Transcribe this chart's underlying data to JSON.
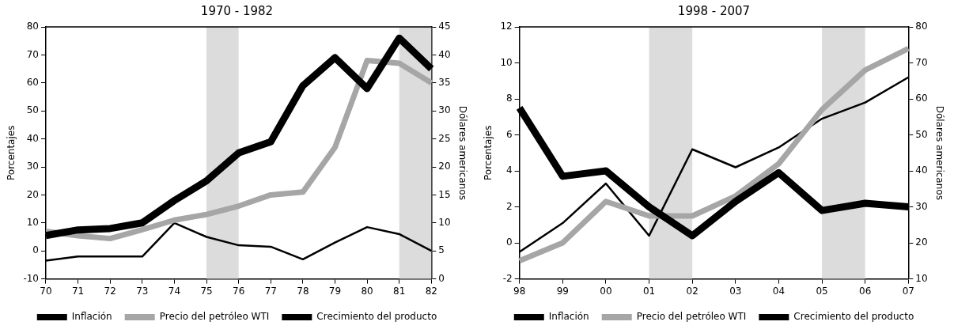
{
  "chart_data": [
    {
      "type": "line",
      "title": "1970 - 1982",
      "ylabel": "Porcentajes",
      "y2label": "Dólares americanos",
      "categories": [
        "70",
        "71",
        "72",
        "73",
        "74",
        "75",
        "76",
        "77",
        "78",
        "79",
        "80",
        "81",
        "82"
      ],
      "series": [
        {
          "name": "Inflación",
          "color": "#000000",
          "values": [
            5.5,
            7.5,
            8,
            10,
            18,
            25,
            35,
            39,
            59,
            69,
            58,
            76,
            65
          ]
        },
        {
          "name": "Precio del petróleo WTI",
          "color": "#a6a6a6",
          "axis": "y2",
          "values": [
            8.5,
            7.7,
            7.2,
            8.8,
            10.5,
            11.5,
            13,
            15,
            15.5,
            23.5,
            39,
            38.5,
            35
          ]
        },
        {
          "name": "Crecimiento del producto",
          "color": "#000000",
          "values": [
            -3.5,
            -2,
            -2,
            -2,
            10,
            5,
            2,
            1.5,
            -3,
            3,
            8.5,
            6,
            0
          ]
        }
      ],
      "ylim": [
        -10,
        80
      ],
      "yticks": [
        -10,
        0,
        10,
        20,
        30,
        40,
        50,
        60,
        70,
        80
      ],
      "y2lim": [
        0,
        45
      ],
      "y2ticks": [
        0,
        5,
        10,
        15,
        20,
        25,
        30,
        35,
        40,
        45
      ],
      "bands": [
        {
          "axis": "x",
          "from": "75",
          "to": "76",
          "color": "#dcdcdc"
        },
        {
          "axis": "x",
          "from": "81",
          "to": "82",
          "color": "#dcdcdc"
        }
      ],
      "grid": false,
      "legend": "bottom",
      "marker": "none",
      "line_style": "solid"
    },
    {
      "type": "line",
      "title": "1998 - 2007",
      "ylabel": "Porcentajes",
      "y2label": "Dólares americanos",
      "categories": [
        "98",
        "99",
        "00",
        "01",
        "02",
        "03",
        "04",
        "05",
        "06",
        "07"
      ],
      "series": [
        {
          "name": "Inflación",
          "color": "#000000",
          "values": [
            7.5,
            3.7,
            4.0,
            2.0,
            0.4,
            2.3,
            3.9,
            1.8,
            2.2,
            2.0
          ]
        },
        {
          "name": "Precio del petróleo WTI",
          "color": "#a6a6a6",
          "axis": "y2",
          "values": [
            15,
            20,
            31.5,
            27.5,
            27.5,
            33,
            42,
            57,
            68,
            74
          ]
        },
        {
          "name": "Crecimiento del producto",
          "color": "#000000",
          "values": [
            -0.5,
            1.1,
            3.3,
            0.4,
            5.2,
            4.2,
            5.3,
            6.9,
            7.8,
            9.2
          ]
        }
      ],
      "ylim": [
        -2,
        12
      ],
      "yticks": [
        -2,
        0,
        2,
        4,
        6,
        8,
        10,
        12
      ],
      "y2lim": [
        10,
        80
      ],
      "y2ticks": [
        10,
        20,
        30,
        40,
        50,
        60,
        70,
        80
      ],
      "bands": [
        {
          "axis": "x",
          "from": "01",
          "to": "02",
          "color": "#dcdcdc"
        },
        {
          "axis": "x",
          "from": "05",
          "to": "06",
          "color": "#dcdcdc"
        }
      ],
      "grid": false,
      "legend": "bottom",
      "marker": "none",
      "line_style": "solid"
    }
  ]
}
